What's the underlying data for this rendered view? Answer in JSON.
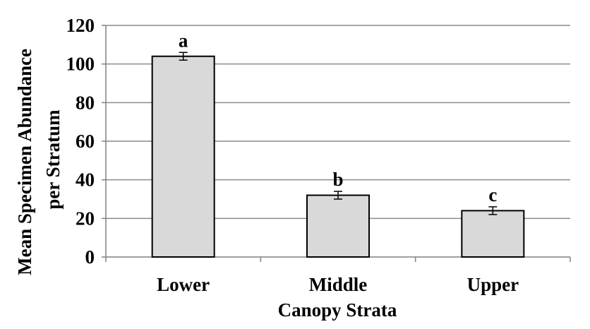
{
  "chart_data": {
    "type": "bar",
    "title": "",
    "xlabel": "Canopy Strata",
    "ylabel_lines": [
      "Mean Specimen Abundance",
      "per Stratum"
    ],
    "categories": [
      "Lower",
      "Middle",
      "Upper"
    ],
    "values": [
      104,
      32,
      24
    ],
    "error": [
      2,
      2,
      2
    ],
    "significance_labels": [
      "a",
      "b",
      "c"
    ],
    "ylim": [
      0,
      120
    ],
    "yticks": [
      "0",
      "20",
      "40",
      "60",
      "80",
      "100",
      "120"
    ],
    "grid": "horizontal",
    "legend": "none",
    "colors": {
      "bar_fill": "#d9d9d9",
      "bar_stroke": "#000000",
      "grid": "#8c8c8c",
      "axis": "#808080"
    }
  }
}
